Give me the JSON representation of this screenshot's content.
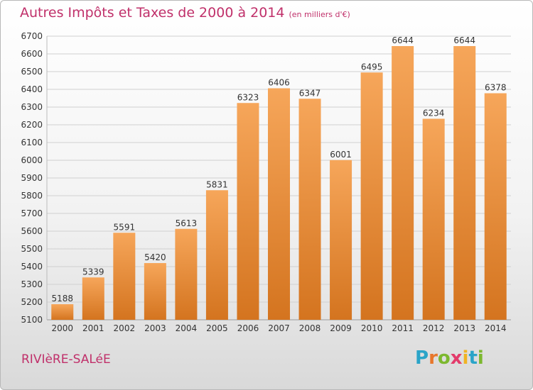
{
  "title": "Autres Impôts et Taxes de 2000 à 2014",
  "subtitle": "(en milliers d'€)",
  "commune": "RIVIèRE-SALéE",
  "brand": {
    "letters": [
      "P",
      "r",
      "o",
      "x",
      "i",
      "t",
      "i"
    ],
    "colors": [
      "#2aa4c8",
      "#e8772c",
      "#7cb82e",
      "#e33b6b",
      "#f0b323",
      "#2aa4c8",
      "#7cb82e"
    ]
  },
  "colors": {
    "bar_top": "#f6a65a",
    "bar_bottom": "#d4741f",
    "grid": "#d0d0d0",
    "text": "#333333",
    "accent": "#c0306a"
  },
  "chart_data": {
    "type": "bar",
    "title": "Autres Impôts et Taxes de 2000 à 2014",
    "subtitle": "(en milliers d'€)",
    "categories": [
      "2000",
      "2001",
      "2002",
      "2003",
      "2004",
      "2005",
      "2006",
      "2007",
      "2008",
      "2009",
      "2010",
      "2011",
      "2012",
      "2013",
      "2014"
    ],
    "values": [
      5188,
      5339,
      5591,
      5420,
      5613,
      5831,
      6323,
      6406,
      6347,
      6001,
      6495,
      6644,
      6234,
      6644,
      6378
    ],
    "ylim": [
      5100,
      6700
    ],
    "yticks": [
      5100,
      5200,
      5300,
      5400,
      5500,
      5600,
      5700,
      5800,
      5900,
      6000,
      6100,
      6200,
      6300,
      6400,
      6500,
      6600,
      6700
    ],
    "grid": true,
    "data_labels": true
  }
}
